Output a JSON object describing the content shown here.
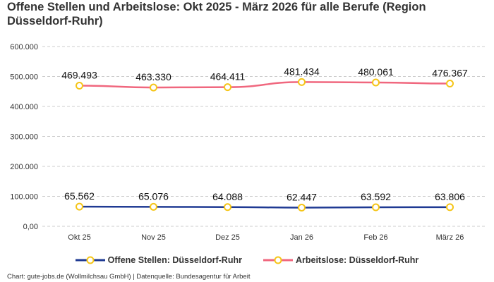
{
  "chart_data": {
    "type": "line",
    "title": "Offene Stellen und Arbeitslose: Okt 2025 - März 2026 für alle Berufe (Region Düsseldorf-Ruhr)",
    "categories": [
      "Okt 25",
      "Nov 25",
      "Dez 25",
      "Jan 26",
      "Feb 26",
      "März 26"
    ],
    "ylim": [
      0,
      600000
    ],
    "yticks": [
      0,
      100000,
      200000,
      300000,
      400000,
      500000,
      600000
    ],
    "ytick_labels": [
      "0,00",
      "100.000",
      "200.000",
      "300.000",
      "400.000",
      "500.000",
      "600.000"
    ],
    "grid": true,
    "legend_placement": "bottom",
    "series": [
      {
        "name": "Offene Stellen: Düsseldorf-Ruhr",
        "color": "#1f3a93",
        "marker_color": "#f5c518",
        "values": [
          65562,
          65076,
          64088,
          62447,
          63592,
          63806
        ],
        "labels": [
          "65.562",
          "65.076",
          "64.088",
          "62.447",
          "63.592",
          "63.806"
        ]
      },
      {
        "name": "Arbeitslose: Düsseldorf-Ruhr",
        "color": "#f0677e",
        "marker_color": "#f5c518",
        "values": [
          469493,
          463330,
          464411,
          481434,
          480061,
          476367
        ],
        "labels": [
          "469.493",
          "463.330",
          "464.411",
          "481.434",
          "480.061",
          "476.367"
        ]
      }
    ]
  },
  "credit": "Chart: gute-jobs.de (Wollmilchsau GmbH) | Datenquelle: Bundesagentur für Arbeit"
}
